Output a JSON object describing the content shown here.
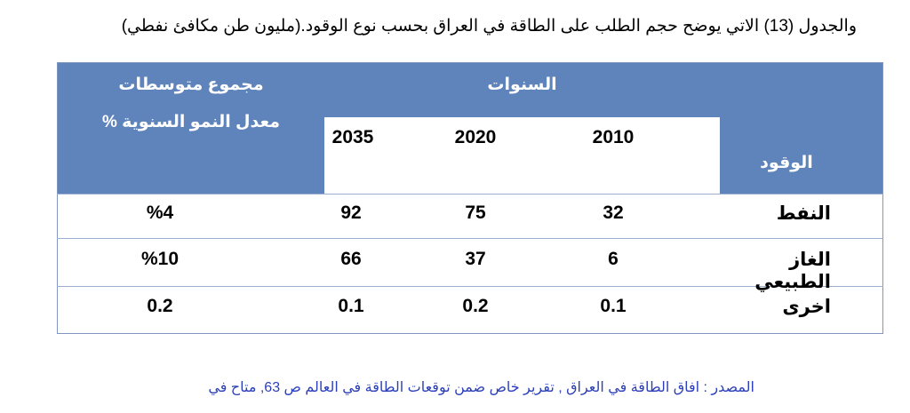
{
  "caption": "والجدول (13) الاتي يوضح حجم الطلب على الطاقة في العراق بحسب نوع الوقود.(مليون طن مكافئ نفطي)",
  "table": {
    "header": {
      "fuel": "الوقود",
      "years": "السنوات",
      "year_columns": [
        "2010",
        "2020",
        "2035"
      ],
      "growth": [
        "مجموع متوسطات",
        "معدل النمو السنوية %"
      ]
    },
    "rows": [
      [
        "النفط",
        "32",
        "75",
        "92",
        "%4"
      ],
      [
        "الغاز الطبيعي",
        "6",
        "37",
        "66",
        "%10"
      ],
      [
        "اخرى",
        "0.1",
        "0.2",
        "0.1",
        "0.2"
      ]
    ]
  },
  "source": "المصدر : افاق الطاقة في العراق , تقرير خاص ضمن توقعات الطاقة في العالم ص 63, متاح في"
}
